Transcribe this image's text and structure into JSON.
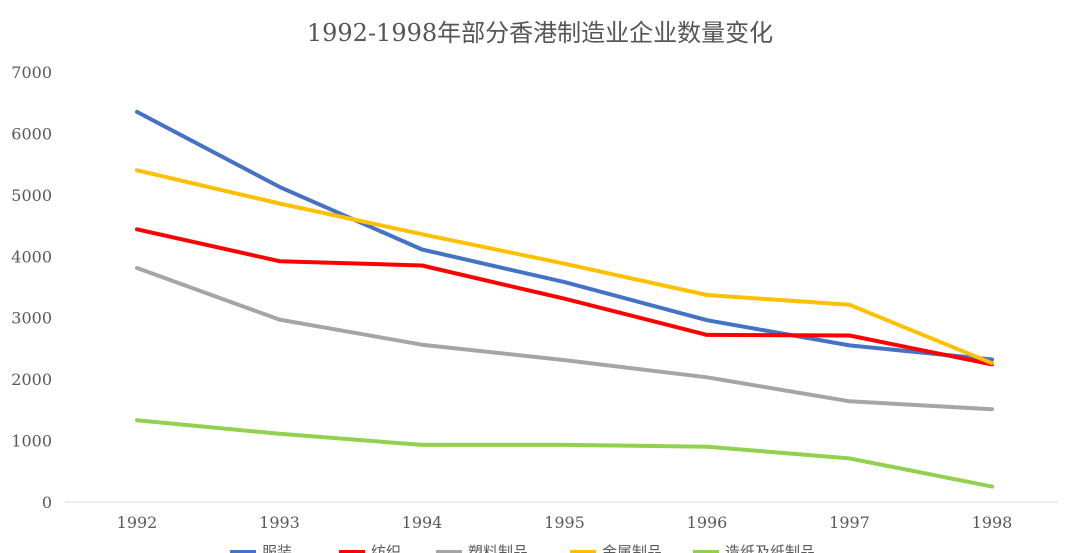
{
  "chart_data": {
    "type": "line",
    "title": "1992-1998年部分香港制造业企业数量变化",
    "xlabel": "",
    "ylabel": "",
    "categories": [
      "1992",
      "1993",
      "1994",
      "1995",
      "1996",
      "1997",
      "1998"
    ],
    "ylim": [
      0,
      7000
    ],
    "yticks": [
      "0",
      "1000",
      "2000",
      "3000",
      "4000",
      "5000",
      "6000",
      "7000"
    ],
    "grid": false,
    "legend_position": "bottom",
    "series": [
      {
        "name": "服装",
        "color": "#4472c4",
        "values": [
          6350,
          5130,
          4110,
          3580,
          2960,
          2550,
          2320
        ]
      },
      {
        "name": "纺织",
        "color": "#ff0000",
        "values": [
          4440,
          3920,
          3850,
          3310,
          2720,
          2710,
          2240
        ]
      },
      {
        "name": "塑料制品",
        "color": "#a5a5a5",
        "values": [
          3810,
          2970,
          2560,
          2310,
          2030,
          1640,
          1510
        ]
      },
      {
        "name": "金属制品",
        "color": "#ffc000",
        "values": [
          5400,
          4860,
          4360,
          3880,
          3370,
          3210,
          2260
        ]
      },
      {
        "name": "造纸及纸制品",
        "color": "#92d050",
        "values": [
          1330,
          1110,
          930,
          930,
          900,
          710,
          250
        ]
      }
    ]
  }
}
